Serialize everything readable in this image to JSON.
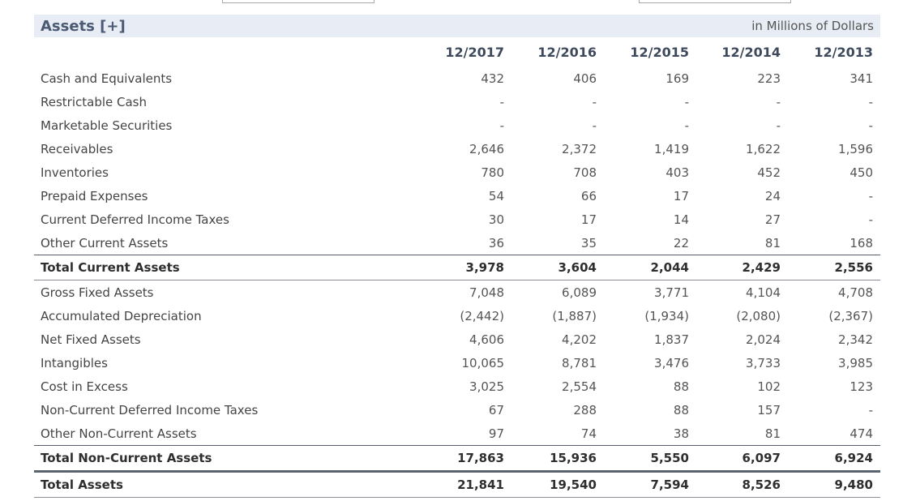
{
  "header": {
    "title": "Assets [+]",
    "units": "in Millions of Dollars",
    "years": [
      "12/2017",
      "12/2016",
      "12/2015",
      "12/2014",
      "12/2013"
    ]
  },
  "rows": [
    {
      "label": "Cash and Equivalents",
      "values": [
        "432",
        "406",
        "169",
        "223",
        "341"
      ]
    },
    {
      "label": "Restrictable Cash",
      "values": [
        "-",
        "-",
        "-",
        "-",
        "-"
      ]
    },
    {
      "label": "Marketable Securities",
      "values": [
        "-",
        "-",
        "-",
        "-",
        "-"
      ]
    },
    {
      "label": "Receivables",
      "values": [
        "2,646",
        "2,372",
        "1,419",
        "1,622",
        "1,596"
      ]
    },
    {
      "label": "Inventories",
      "values": [
        "780",
        "708",
        "403",
        "452",
        "450"
      ]
    },
    {
      "label": "Prepaid Expenses",
      "values": [
        "54",
        "66",
        "17",
        "24",
        "-"
      ]
    },
    {
      "label": "Current Deferred Income Taxes",
      "values": [
        "30",
        "17",
        "14",
        "27",
        "-"
      ]
    },
    {
      "label": "Other Current Assets",
      "values": [
        "36",
        "35",
        "22",
        "81",
        "168"
      ]
    },
    {
      "label": "Total Current Assets",
      "values": [
        "3,978",
        "3,604",
        "2,044",
        "2,429",
        "2,556"
      ]
    },
    {
      "label": "Gross Fixed Assets",
      "values": [
        "7,048",
        "6,089",
        "3,771",
        "4,104",
        "4,708"
      ]
    },
    {
      "label": "Accumulated Depreciation",
      "values": [
        "(2,442)",
        "(1,887)",
        "(1,934)",
        "(2,080)",
        "(2,367)"
      ]
    },
    {
      "label": "Net Fixed Assets",
      "values": [
        "4,606",
        "4,202",
        "1,837",
        "2,024",
        "2,342"
      ]
    },
    {
      "label": "Intangibles",
      "values": [
        "10,065",
        "8,781",
        "3,476",
        "3,733",
        "3,985"
      ]
    },
    {
      "label": "Cost in Excess",
      "values": [
        "3,025",
        "2,554",
        "88",
        "102",
        "123"
      ]
    },
    {
      "label": "Non-Current Deferred Income Taxes",
      "values": [
        "67",
        "288",
        "88",
        "157",
        "-"
      ]
    },
    {
      "label": "Other Non-Current Assets",
      "values": [
        "97",
        "74",
        "38",
        "81",
        "474"
      ]
    },
    {
      "label": "Total Non-Current Assets",
      "values": [
        "17,863",
        "15,936",
        "5,550",
        "6,097",
        "6,924"
      ]
    },
    {
      "label": "Total Assets",
      "values": [
        "21,841",
        "19,540",
        "7,594",
        "8,526",
        "9,480"
      ]
    }
  ]
}
